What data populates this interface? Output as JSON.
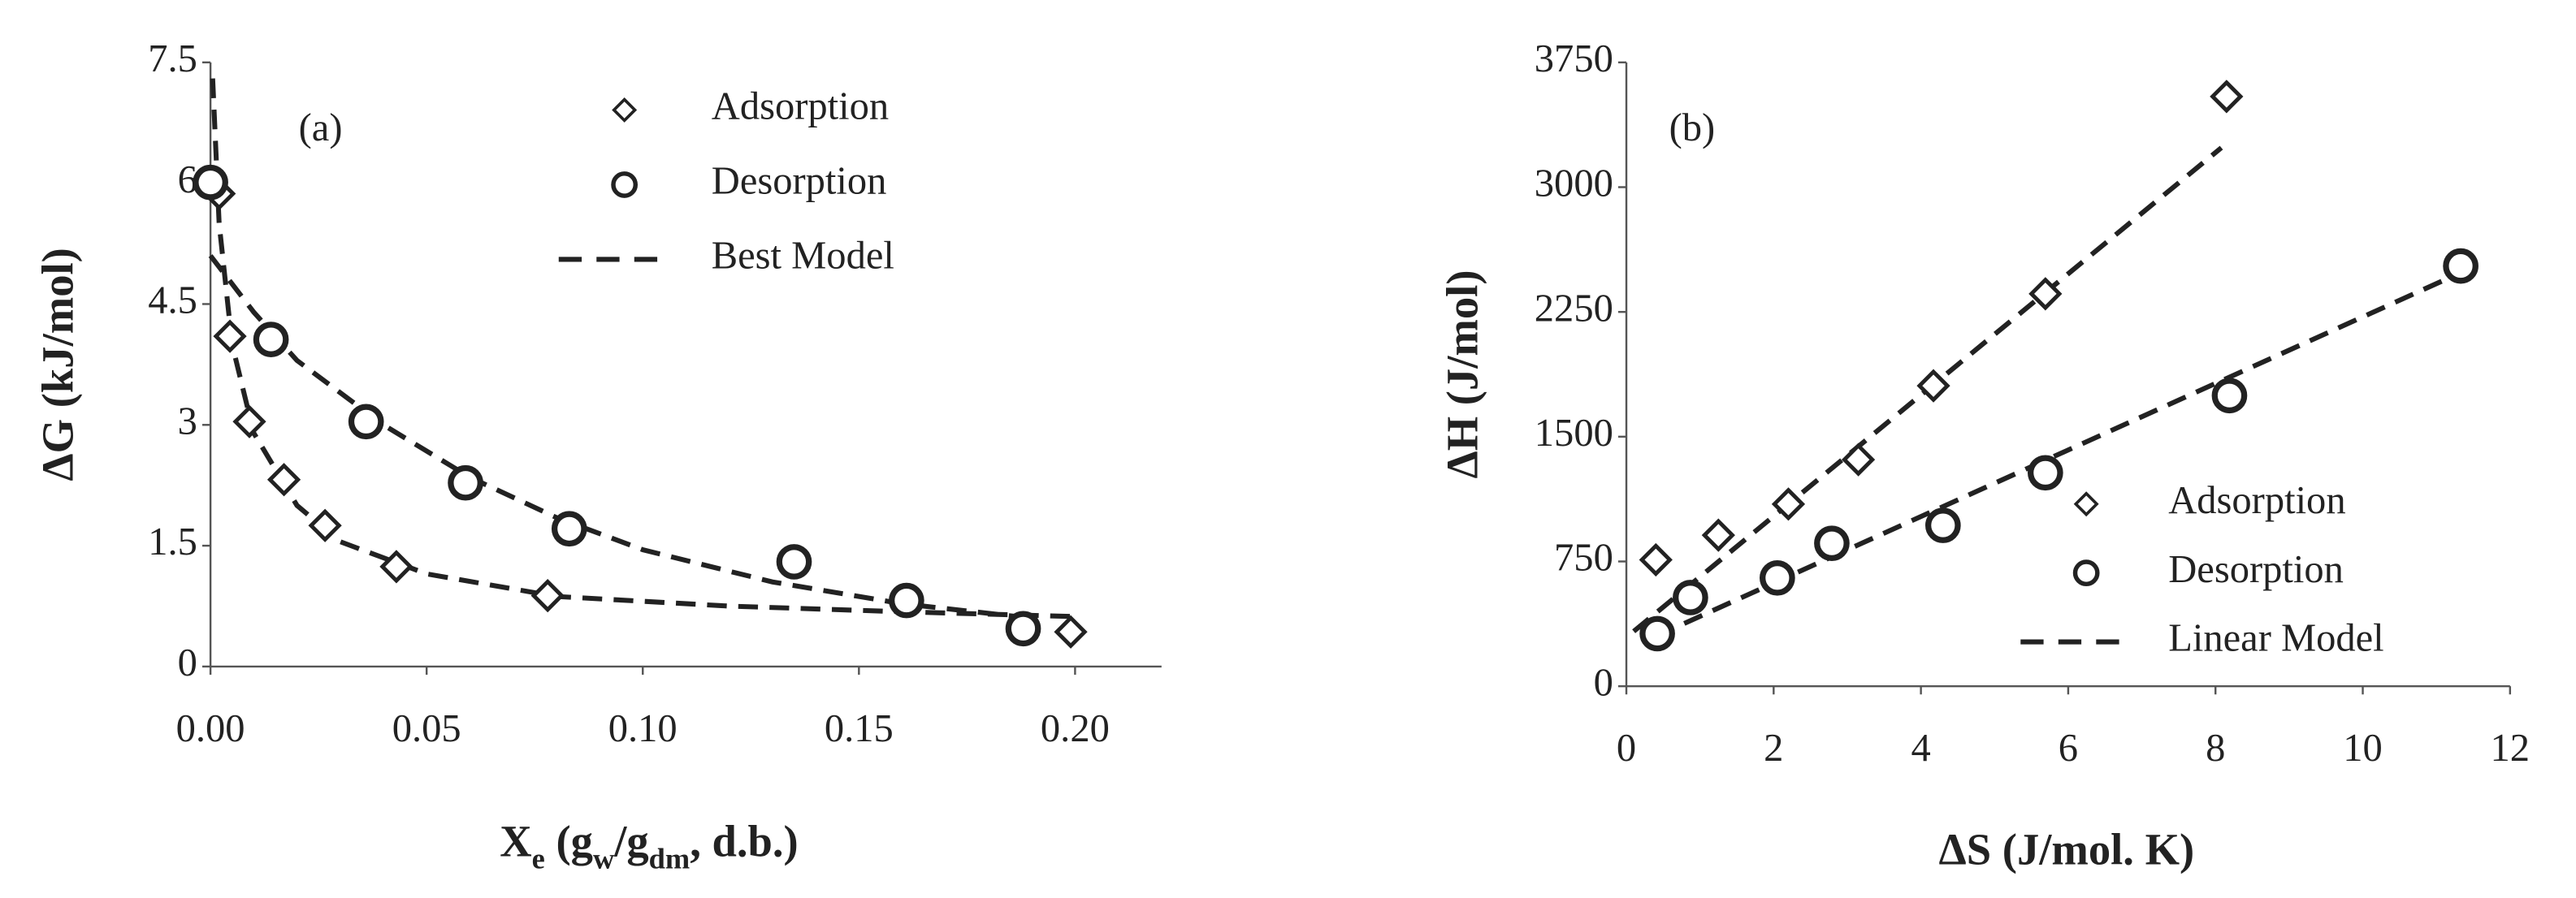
{
  "chart_data": [
    {
      "type": "scatter",
      "annotation": "(a)",
      "x_label": [
        "X",
        "e",
        "  (g",
        "w",
        "/g",
        "dm",
        ", d.b.)"
      ],
      "y_label": "ΔG  (kJ/mol)",
      "xlim": [
        0,
        0.22
      ],
      "xticks": [
        {
          "value": 0,
          "label": "0.00"
        },
        {
          "value": 0.05,
          "label": "0.05"
        },
        {
          "value": 0.1,
          "label": "0.10"
        },
        {
          "value": 0.15,
          "label": "0.15"
        },
        {
          "value": 0.2,
          "label": "0.20"
        }
      ],
      "ylim": [
        0,
        7.5
      ],
      "yticks": [
        0,
        1.5,
        3,
        4.5,
        6,
        7.5
      ],
      "legend": "top",
      "series": [
        {
          "name": "Adsorption",
          "color": "#222222",
          "marker": "diamond",
          "x": [
            0.002,
            0.0045,
            0.009,
            0.017,
            0.0265,
            0.043,
            0.078,
            0.199
          ],
          "values": [
            5.87,
            4.1,
            3.04,
            2.32,
            1.75,
            1.24,
            0.88,
            0.43
          ]
        },
        {
          "name": "Desorption",
          "color": "#222222",
          "marker": "circle",
          "x": [
            0,
            0.014,
            0.036,
            0.059,
            0.083,
            0.135,
            0.161,
            0.188
          ],
          "values": [
            6.01,
            4.06,
            3.04,
            2.28,
            1.71,
            1.3,
            0.82,
            0.47
          ]
        }
      ],
      "model": {
        "name": "Best Model",
        "color": "#222222",
        "lines": [
          {
            "x": [
              0.0005,
              0.002,
              0.005,
              0.01,
              0.02,
              0.03,
              0.05,
              0.08,
              0.12,
              0.16,
              0.2
            ],
            "values": [
              7.3,
              5.5,
              4.0,
              2.9,
              2.0,
              1.55,
              1.15,
              0.87,
              0.75,
              0.68,
              0.62
            ]
          },
          {
            "x": [
              0,
              0.01,
              0.02,
              0.04,
              0.06,
              0.08,
              0.1,
              0.13,
              0.16,
              0.19
            ],
            "values": [
              5.1,
              4.4,
              3.8,
              3.0,
              2.35,
              1.85,
              1.45,
              1.05,
              0.78,
              0.6
            ]
          }
        ]
      }
    },
    {
      "type": "scatter",
      "annotation": "(b)",
      "x_label": [
        "ΔS (J/mol. K)"
      ],
      "y_label": "ΔH (J/mol)",
      "xlim": [
        0,
        12
      ],
      "xticks": [
        0,
        2,
        4,
        6,
        8,
        10,
        12
      ],
      "ylim": [
        0,
        3750
      ],
      "yticks": [
        0,
        750,
        1500,
        2250,
        3000,
        3750
      ],
      "legend": "lower right",
      "series": [
        {
          "name": "Adsorption",
          "color": "#222222",
          "marker": "diamond",
          "x": [
            0.4,
            1.25,
            2.2,
            3.15,
            4.17,
            5.69,
            8.15
          ],
          "values": [
            760,
            908,
            1095,
            1362,
            1806,
            2359,
            3545
          ]
        },
        {
          "name": "Desorption",
          "color": "#222222",
          "marker": "circle",
          "x": [
            0.42,
            0.87,
            2.05,
            2.79,
            4.3,
            5.69,
            8.19,
            11.33
          ],
          "values": [
            316,
            533,
            651,
            859,
            967,
            1283,
            1747,
            2526
          ]
        }
      ],
      "model": {
        "name": "Linear Model",
        "color": "#222222",
        "lines": [
          {
            "x": [
              0.1,
              8.08
            ],
            "values": [
              330,
              3237
            ]
          },
          {
            "x": [
              0.4,
              11.3
            ],
            "values": [
              300,
              2480
            ]
          }
        ]
      }
    }
  ]
}
